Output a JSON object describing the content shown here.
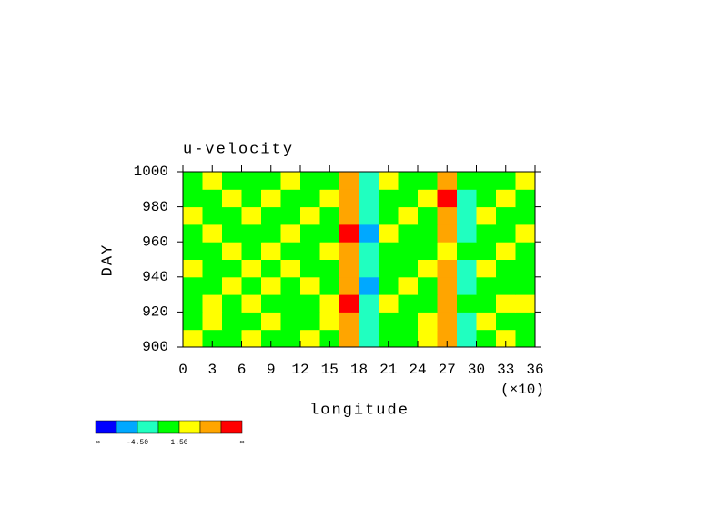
{
  "chart_data": {
    "type": "heatmap",
    "title": "u-velocity",
    "xlabel": "longitude",
    "ylabel": "DAY",
    "xscale_note": "(×10)",
    "xlim": [
      0,
      36
    ],
    "xticks": [
      0,
      3,
      6,
      9,
      12,
      15,
      18,
      21,
      24,
      27,
      30,
      33,
      36
    ],
    "ylim": [
      900,
      1000
    ],
    "yticks": [
      900,
      920,
      940,
      960,
      980,
      1000
    ],
    "xbins": [
      0,
      2,
      4,
      6,
      8,
      10,
      12,
      14,
      16,
      18,
      20,
      22,
      24,
      26,
      28,
      30,
      32,
      34,
      36
    ],
    "ybins": [
      900,
      910,
      920,
      930,
      940,
      950,
      960,
      970,
      980,
      990,
      1000
    ],
    "z": [
      [
        2,
        0,
        1,
        3,
        1,
        0,
        2,
        1,
        5,
        -2,
        1,
        0,
        2,
        6,
        -3,
        1,
        3,
        0
      ],
      [
        0,
        2,
        1,
        -1,
        2,
        1,
        0,
        3,
        7,
        -4,
        0,
        1,
        3,
        5,
        -2,
        2,
        0,
        1
      ],
      [
        1,
        3,
        0,
        2,
        0,
        -1,
        1,
        2,
        8,
        -3,
        2,
        0,
        1,
        7,
        -1,
        0,
        2,
        3
      ],
      [
        -1,
        1,
        2,
        0,
        3,
        1,
        2,
        0,
        6,
        -5,
        1,
        2,
        0,
        6,
        -4,
        1,
        1,
        0
      ],
      [
        2,
        0,
        1,
        2,
        -1,
        2,
        0,
        1,
        5,
        -2,
        0,
        1,
        2,
        5,
        -2,
        3,
        0,
        1
      ],
      [
        0,
        1,
        3,
        1,
        2,
        0,
        1,
        2,
        7,
        -4,
        1,
        -1,
        1,
        4,
        -1,
        0,
        2,
        1
      ],
      [
        1,
        2,
        0,
        -1,
        1,
        3,
        0,
        1,
        8,
        -5,
        2,
        1,
        0,
        6,
        -3,
        1,
        0,
        2
      ],
      [
        3,
        0,
        1,
        2,
        0,
        1,
        2,
        0,
        5,
        -2,
        0,
        2,
        1,
        5,
        -2,
        2,
        1,
        0
      ],
      [
        0,
        1,
        2,
        0,
        3,
        0,
        -1,
        2,
        6,
        -3,
        1,
        0,
        3,
        8,
        -4,
        0,
        2,
        1
      ],
      [
        1,
        2,
        0,
        1,
        1,
        2,
        0,
        1,
        7,
        -2,
        2,
        1,
        0,
        6,
        -1,
        1,
        0,
        2
      ]
    ],
    "levels": [
      -7.5,
      -4.5,
      -1.5,
      1.5,
      4.5,
      7.5
    ],
    "colors": [
      "#0000ff",
      "#00a8ff",
      "#20ffc0",
      "#00ff00",
      "#ffff00",
      "#ffa500",
      "#ff0000"
    ],
    "level_labels": [
      {
        "value": -4.5,
        "label": "-4.50"
      },
      {
        "value": 1.5,
        "label": "1.50"
      }
    ],
    "colorbar_ends": [
      "−∞",
      "∞"
    ]
  }
}
